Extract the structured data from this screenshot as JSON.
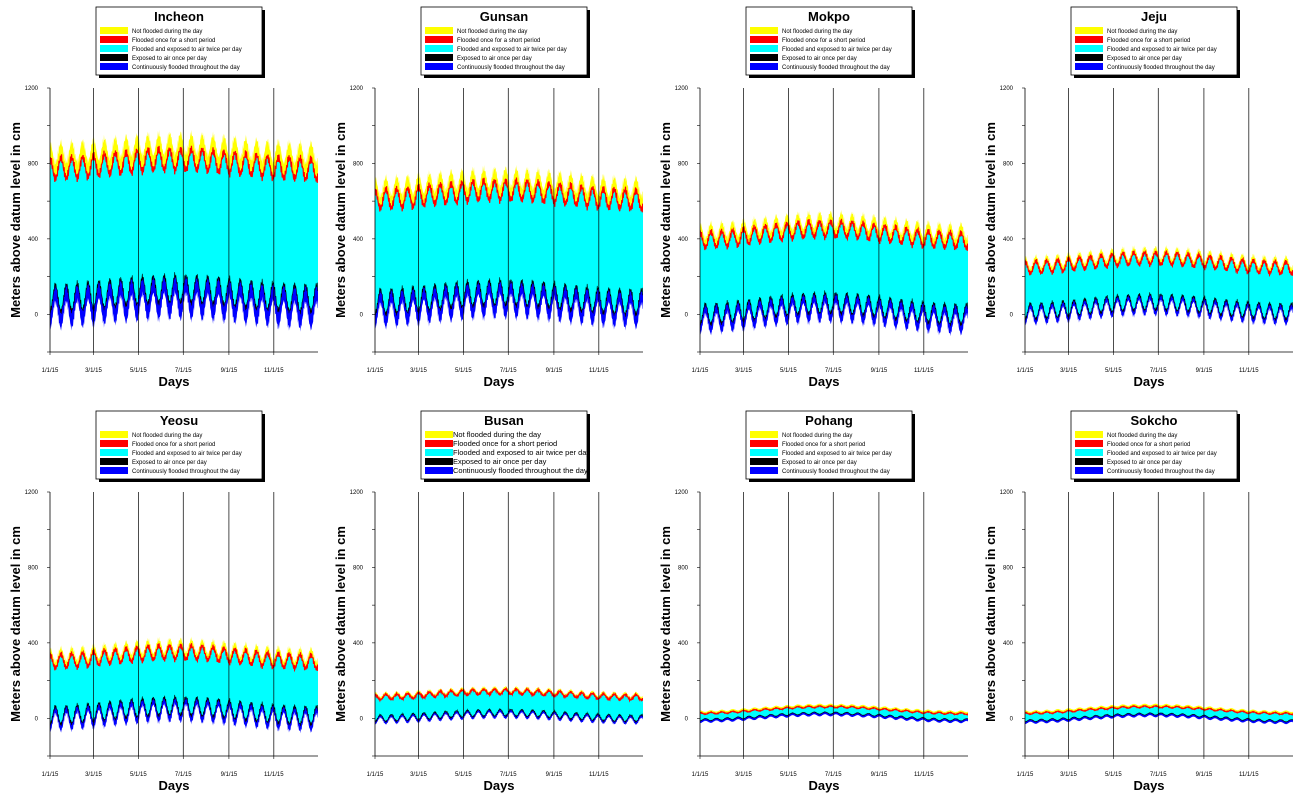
{
  "legend_items": [
    {
      "label": "Not flooded during the day",
      "color": "#ffff00"
    },
    {
      "label": "Flooded once for a short period",
      "color": "#ff0000"
    },
    {
      "label": "Flooded and exposed to air twice per day",
      "color": "#00ffff"
    },
    {
      "label": "Exposed to air once per day",
      "color": "#000000"
    },
    {
      "label": "Continuously flooded throughout the day",
      "color": "#0000ff"
    }
  ],
  "chart_data": [
    {
      "type": "area",
      "title": "Incheon",
      "xlabel": "Days",
      "ylabel": "Meters above datum level in cm",
      "ylim": [
        -200,
        1200
      ],
      "yticks": [
        "1200",
        "800",
        "400",
        "0"
      ],
      "xticks": [
        "1/1/15",
        "3/1/15",
        "5/1/15",
        "7/1/15",
        "9/1/15",
        "11/1/15"
      ],
      "vlines": [
        "3/1/15",
        "5/1/15",
        "7/1/15",
        "9/1/15",
        "11/1/15"
      ],
      "x_range": [
        "1/1/15",
        "12/31/15"
      ],
      "max_high": 960,
      "mean_high": 880,
      "min_low": -60,
      "mean_low": 110,
      "fortnight_amp": 60,
      "annual_amp": 25
    },
    {
      "type": "area",
      "title": "Gunsan",
      "xlabel": "Days",
      "ylabel": "Meters above datum level in cm",
      "ylim": [
        -200,
        1200
      ],
      "yticks": [
        "1200",
        "800",
        "400",
        "0"
      ],
      "xticks": [
        "1/1/15",
        "3/1/15",
        "5/1/15",
        "7/1/15",
        "9/1/15",
        "11/1/15"
      ],
      "vlines": [
        "3/1/15",
        "5/1/15",
        "7/1/15",
        "9/1/15",
        "11/1/15"
      ],
      "x_range": [
        "1/1/15",
        "12/31/15"
      ],
      "max_high": 780,
      "mean_high": 700,
      "min_low": -50,
      "mean_low": 90,
      "fortnight_amp": 55,
      "annual_amp": 25
    },
    {
      "type": "area",
      "title": "Mokpo",
      "xlabel": "Days",
      "ylabel": "Meters above datum level in cm",
      "ylim": [
        -200,
        1200
      ],
      "yticks": [
        "1200",
        "800",
        "400",
        "0"
      ],
      "xticks": [
        "1/1/15",
        "3/1/15",
        "5/1/15",
        "7/1/15",
        "9/1/15",
        "11/1/15"
      ],
      "vlines": [
        "3/1/15",
        "5/1/15",
        "7/1/15",
        "9/1/15",
        "11/1/15"
      ],
      "x_range": [
        "1/1/15",
        "12/31/15"
      ],
      "max_high": 550,
      "mean_high": 470,
      "min_low": -100,
      "mean_low": 30,
      "fortnight_amp": 45,
      "annual_amp": 30
    },
    {
      "type": "area",
      "title": "Jeju",
      "xlabel": "Days",
      "ylabel": "Meters above datum level in cm",
      "ylim": [
        -200,
        1200
      ],
      "yticks": [
        "1200",
        "800",
        "400",
        "0"
      ],
      "xticks": [
        "1/1/15",
        "3/1/15",
        "5/1/15",
        "7/1/15",
        "9/1/15",
        "11/1/15"
      ],
      "vlines": [
        "3/1/15",
        "5/1/15",
        "7/1/15",
        "9/1/15",
        "11/1/15"
      ],
      "x_range": [
        "1/1/15",
        "12/31/15"
      ],
      "max_high": 360,
      "mean_high": 300,
      "min_low": -40,
      "mean_low": 40,
      "fortnight_amp": 35,
      "annual_amp": 25
    },
    {
      "type": "area",
      "title": "Yeosu",
      "xlabel": "Days",
      "ylabel": "Meters above datum level in cm",
      "ylim": [
        -200,
        1200
      ],
      "yticks": [
        "1200",
        "800",
        "400",
        "0"
      ],
      "xticks": [
        "1/1/15",
        "3/1/15",
        "5/1/15",
        "7/1/15",
        "9/1/15",
        "11/1/15"
      ],
      "vlines": [
        "3/1/15",
        "5/1/15",
        "7/1/15",
        "9/1/15",
        "11/1/15"
      ],
      "x_range": [
        "1/1/15",
        "12/31/15"
      ],
      "max_high": 420,
      "mean_high": 360,
      "min_low": -60,
      "mean_low": 40,
      "fortnight_amp": 40,
      "annual_amp": 25
    },
    {
      "type": "area",
      "title": "Busan",
      "xlabel": "Days",
      "ylabel": "Meters above datum level in cm",
      "ylim": [
        -200,
        1200
      ],
      "yticks": [
        "1200",
        "800",
        "400",
        "0"
      ],
      "xticks": [
        "1/1/15",
        "3/1/15",
        "5/1/15",
        "7/1/15",
        "9/1/15",
        "11/1/15"
      ],
      "vlines": [
        "3/1/15",
        "5/1/15",
        "7/1/15",
        "9/1/15",
        "11/1/15"
      ],
      "x_range": [
        "1/1/15",
        "12/31/15"
      ],
      "max_high": 170,
      "mean_high": 140,
      "min_low": -20,
      "mean_low": 15,
      "fortnight_amp": 15,
      "annual_amp": 15
    },
    {
      "type": "area",
      "title": "Pohang",
      "xlabel": "Days",
      "ylabel": "Meters above datum level in cm",
      "ylim": [
        -200,
        1200
      ],
      "yticks": [
        "1200",
        "800",
        "400",
        "0"
      ],
      "xticks": [
        "1/1/15",
        "3/1/15",
        "5/1/15",
        "7/1/15",
        "9/1/15",
        "11/1/15"
      ],
      "vlines": [
        "3/1/15",
        "5/1/15",
        "7/1/15",
        "9/1/15",
        "11/1/15"
      ],
      "x_range": [
        "1/1/15",
        "12/31/15"
      ],
      "max_high": 80,
      "mean_high": 55,
      "min_low": -10,
      "mean_low": 10,
      "fortnight_amp": 5,
      "annual_amp": 18
    },
    {
      "type": "area",
      "title": "Sokcho",
      "xlabel": "Days",
      "ylabel": "Meters above datum level in cm",
      "ylim": [
        -200,
        1200
      ],
      "yticks": [
        "1200",
        "800",
        "400",
        "0"
      ],
      "xticks": [
        "1/1/15",
        "3/1/15",
        "5/1/15",
        "7/1/15",
        "9/1/15",
        "11/1/15"
      ],
      "vlines": [
        "3/1/15",
        "5/1/15",
        "7/1/15",
        "9/1/15",
        "11/1/15"
      ],
      "x_range": [
        "1/1/15",
        "12/31/15"
      ],
      "max_high": 80,
      "mean_high": 55,
      "min_low": -15,
      "mean_low": 5,
      "fortnight_amp": 5,
      "annual_amp": 18
    }
  ]
}
